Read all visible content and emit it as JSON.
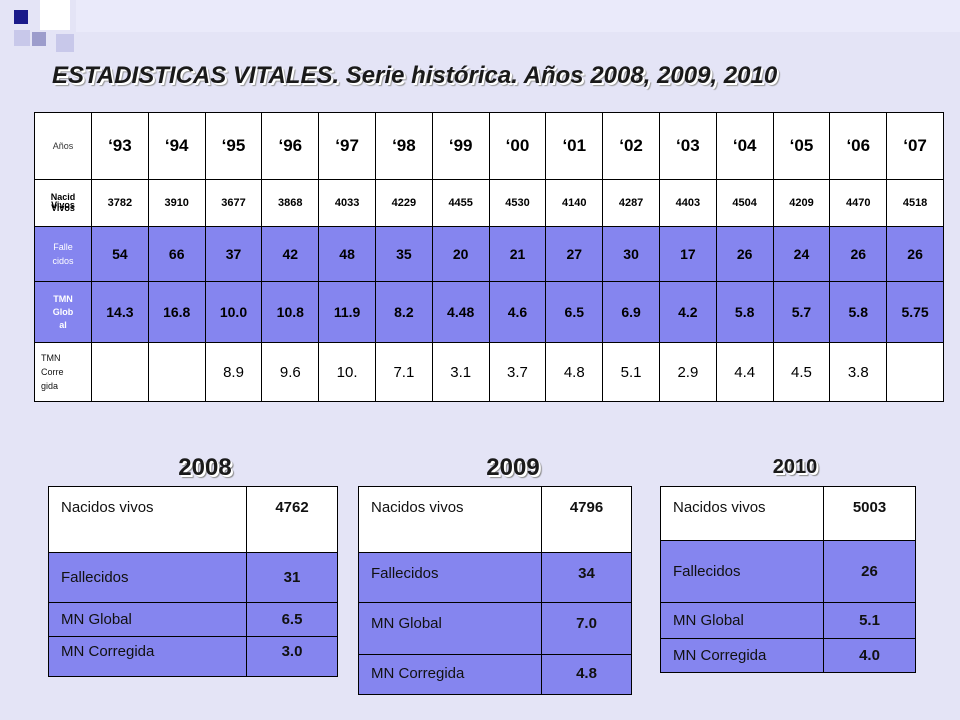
{
  "title": "ESTADISTICAS VITALES. Serie histórica. Años 2008, 2009, 2010",
  "colors": {
    "background": "#e4e4f6",
    "table_blue": "#8585ef",
    "deco_navy": "#1a1a8a",
    "deco_light": "#9c9ccc",
    "deco_pale": "#c8c8ea"
  },
  "main_table": {
    "header_label": "Años",
    "years": [
      "‘93",
      "‘94",
      "‘95",
      "‘96",
      "‘97",
      "‘98",
      "‘99",
      "‘00",
      "‘01",
      "‘02",
      "‘03",
      "‘04",
      "‘05",
      "‘06",
      "‘07"
    ],
    "rows": {
      "nacidos": {
        "label_top": "Nacid",
        "label_mid": "Vivos",
        "label_bot": "Vivos",
        "values": [
          "3782",
          "3910",
          "3677",
          "3868",
          "4033",
          "4229",
          "4455",
          "4530",
          "4140",
          "4287",
          "4403",
          "4504",
          "4209",
          "4470",
          "4518"
        ]
      },
      "fallecidos": {
        "label_1": "Falle",
        "label_2": "cidos",
        "values": [
          "54",
          "66",
          "37",
          "42",
          "48",
          "35",
          "20",
          "21",
          "27",
          "30",
          "17",
          "26",
          "24",
          "26",
          "26"
        ]
      },
      "tmn_global": {
        "label_1": "TMN",
        "label_2": "Glob",
        "label_3": "al",
        "values": [
          "14.3",
          "16.8",
          "10.0",
          "10.8",
          "11.9",
          "8.2",
          "4.48",
          "4.6",
          "6.5",
          "6.9",
          "4.2",
          "5.8",
          "5.7",
          "5.8",
          "5.75"
        ]
      },
      "tmn_corregida": {
        "label_1": "TMN",
        "label_2": "Corre",
        "label_3": "gida",
        "values": [
          "",
          "",
          "8.9",
          "9.6",
          "10.",
          "7.1",
          "3.1",
          "3.7",
          "4.8",
          "5.1",
          "2.9",
          "4.4",
          "4.5",
          "3.8",
          ""
        ]
      }
    }
  },
  "y2008": {
    "year": "2008",
    "nacidos_label": "Nacidos vivos",
    "nacidos": "4762",
    "fallecidos_label": "Fallecidos",
    "fallecidos": "31",
    "global_label": "MN Global",
    "global": "6.5",
    "corregida_label": "MN Corregida",
    "corregida": "3.0"
  },
  "y2009": {
    "year": "2009",
    "nacidos_label": "Nacidos vivos",
    "nacidos": "4796",
    "fallecidos_label": "Fallecidos",
    "fallecidos": "34",
    "global_label": "MN Global",
    "global": "7.0",
    "corregida_label": "MN Corregida",
    "corregida": "4.8"
  },
  "y2010": {
    "year": "2010",
    "nacidos_label": "Nacidos vivos",
    "nacidos": "5003",
    "fallecidos_label": "Fallecidos",
    "fallecidos": "26",
    "global_label": "MN Global",
    "global": "5.1",
    "corregida_label": "MN Corregida",
    "corregida": "4.0"
  }
}
